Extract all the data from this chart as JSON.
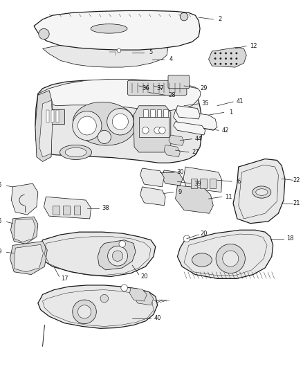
{
  "bg_color": "#ffffff",
  "line_color": "#1a1a1a",
  "fig_width": 4.38,
  "fig_height": 5.33,
  "dpi": 100,
  "lw_main": 0.9,
  "lw_thin": 0.55,
  "lw_leader": 0.45,
  "label_fontsize": 6.0,
  "part_fill": "#f5f5f5",
  "dark_fill": "#d8d8d8",
  "mid_fill": "#e8e8e8"
}
